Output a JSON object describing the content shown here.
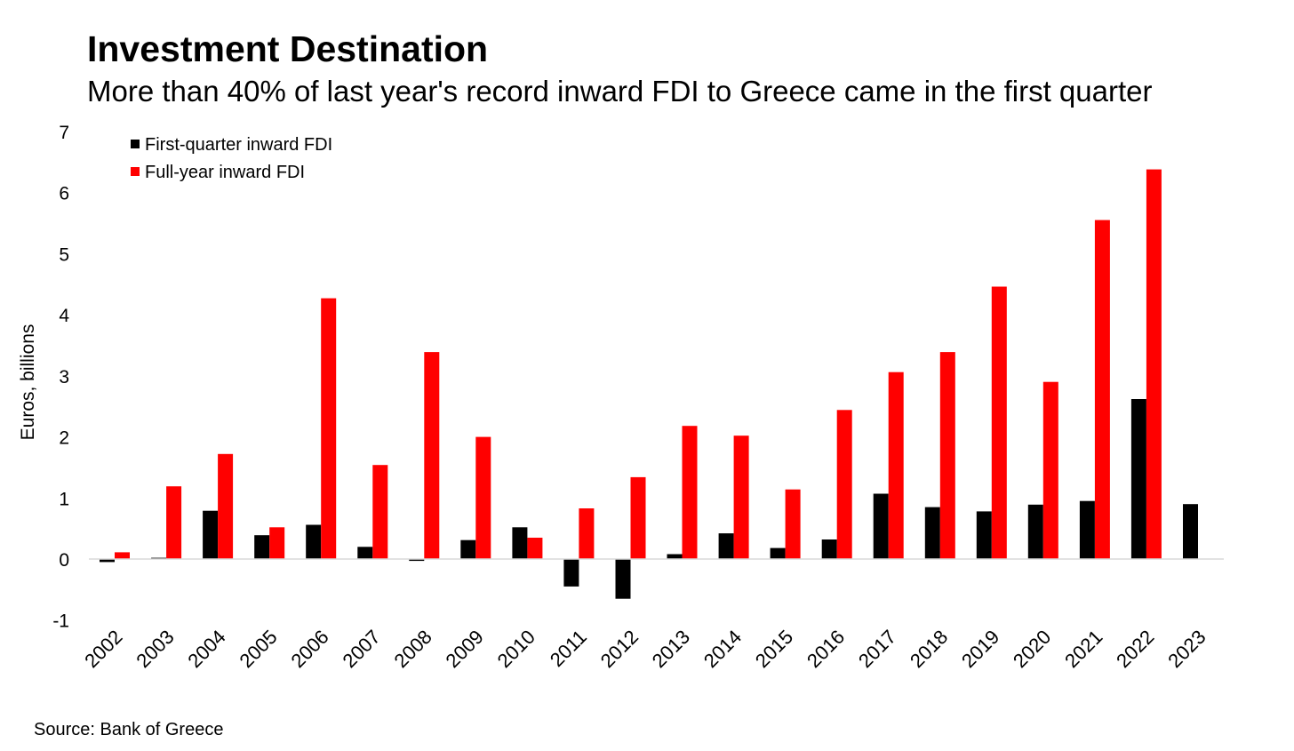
{
  "title": "Investment Destination",
  "subtitle": "More than 40% of last year's record inward FDI to Greece came in the first quarter",
  "source": "Source: Bank of Greece",
  "colors": {
    "first_quarter": "#000000",
    "full_year": "#ff0000",
    "axis": "#d9d9d9"
  },
  "chart_data": {
    "type": "bar",
    "title": "Investment Destination",
    "subtitle": "More than 40% of last year's record inward FDI to Greece came in the first quarter",
    "xlabel": "",
    "ylabel": "Euros, billions",
    "ylim": [
      -1,
      7
    ],
    "yticks": [
      -1,
      0,
      1,
      2,
      3,
      4,
      5,
      6,
      7
    ],
    "grid": false,
    "legend_position": "top-left",
    "categories": [
      "2002",
      "2003",
      "2004",
      "2005",
      "2006",
      "2007",
      "2008",
      "2009",
      "2010",
      "2011",
      "2012",
      "2013",
      "2014",
      "2015",
      "2016",
      "2017",
      "2018",
      "2019",
      "2020",
      "2021",
      "2022",
      "2023"
    ],
    "series": [
      {
        "name": "First-quarter inward FDI",
        "color": "#000000",
        "values": [
          -0.05,
          0.02,
          0.79,
          0.39,
          0.56,
          0.2,
          -0.03,
          0.31,
          0.52,
          -0.45,
          -0.65,
          0.08,
          0.42,
          0.18,
          0.32,
          1.07,
          0.85,
          0.78,
          0.89,
          0.95,
          2.62,
          0.9
        ]
      },
      {
        "name": "Full-year inward FDI",
        "color": "#ff0000",
        "values": [
          0.11,
          1.19,
          1.72,
          0.52,
          4.27,
          1.54,
          3.39,
          2.0,
          0.35,
          0.83,
          1.34,
          2.18,
          2.02,
          1.14,
          2.44,
          3.06,
          3.39,
          4.46,
          2.9,
          5.55,
          6.38,
          null
        ]
      }
    ]
  }
}
